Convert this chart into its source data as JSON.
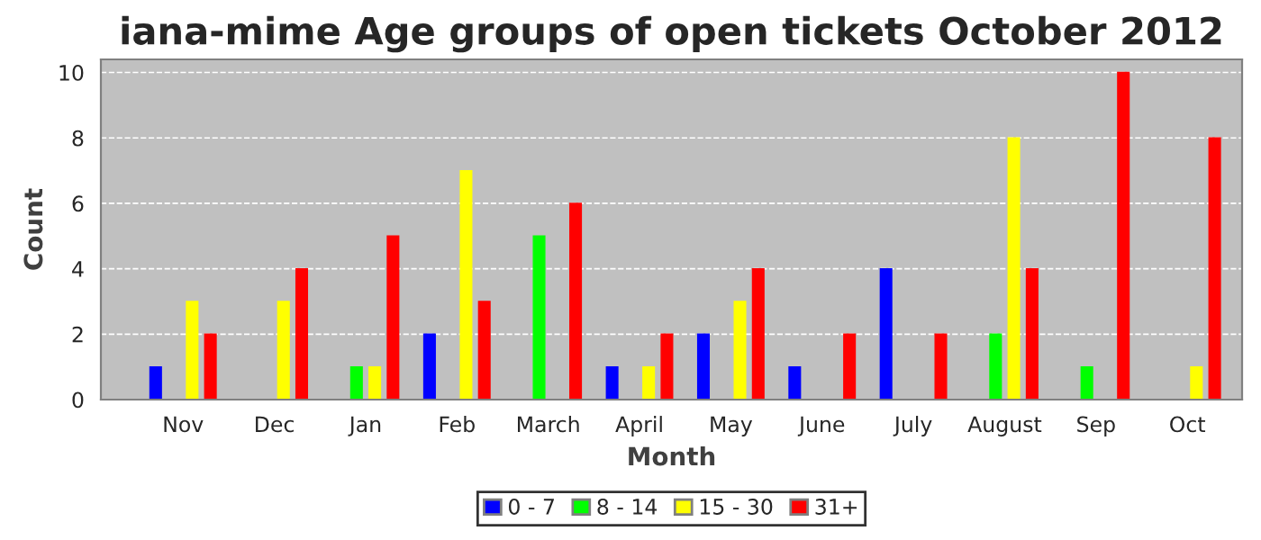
{
  "chart_data": {
    "type": "bar",
    "title": "iana-mime Age groups of open tickets October 2012",
    "xlabel": "Month",
    "ylabel": "Count",
    "categories": [
      "Nov",
      "Dec",
      "Jan",
      "Feb",
      "March",
      "April",
      "May",
      "June",
      "July",
      "August",
      "Sep",
      "Oct"
    ],
    "series": [
      {
        "name": "0 - 7",
        "color": "#0000ff",
        "values": [
          1,
          0,
          0,
          2,
          0,
          1,
          2,
          1,
          4,
          0,
          0,
          0
        ]
      },
      {
        "name": "8 - 14",
        "color": "#00ff00",
        "values": [
          0,
          0,
          1,
          0,
          5,
          0,
          0,
          0,
          0,
          2,
          1,
          0
        ]
      },
      {
        "name": "15 - 30",
        "color": "#ffff00",
        "values": [
          3,
          3,
          1,
          7,
          0,
          1,
          3,
          0,
          0,
          8,
          0,
          1
        ]
      },
      {
        "name": "31+",
        "color": "#ff0000",
        "values": [
          2,
          4,
          5,
          3,
          6,
          2,
          4,
          2,
          2,
          4,
          10,
          8
        ]
      }
    ],
    "ylim": [
      0,
      10.4
    ],
    "yticks": [
      0,
      2,
      4,
      6,
      8,
      10
    ],
    "grid": "y",
    "legend": "bottom"
  }
}
